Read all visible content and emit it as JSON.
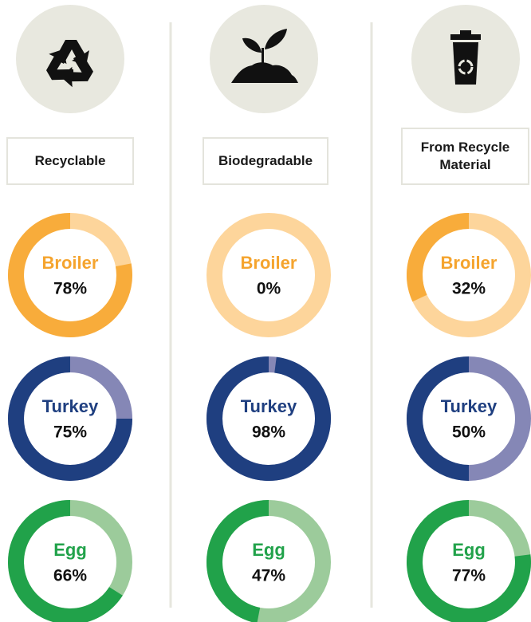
{
  "columns": [
    {
      "label": "Recyclable"
    },
    {
      "label": "Biodegradable"
    },
    {
      "label": "From Recycle Material"
    }
  ],
  "chart_data": [
    {
      "type": "donut",
      "title": "Broiler",
      "values": [
        78
      ],
      "value_labels": [
        "78%"
      ],
      "color": "#f8ac3b",
      "track_color": "#fdd59b",
      "title_color": "#f5a42e"
    },
    {
      "type": "donut",
      "title": "Turkey",
      "values": [
        75
      ],
      "value_labels": [
        "75%"
      ],
      "color": "#1f3f80",
      "track_color": "#8587b6",
      "title_color": "#1f3f80"
    },
    {
      "type": "donut",
      "title": "Egg",
      "values": [
        66
      ],
      "value_labels": [
        "66%"
      ],
      "color": "#21a24a",
      "track_color": "#9ccb9b",
      "title_color": "#21a24a"
    },
    {
      "type": "donut",
      "title": "Broiler",
      "values": [
        0
      ],
      "value_labels": [
        "0%"
      ],
      "color": "#f8ac3b",
      "track_color": "#fdd59b",
      "title_color": "#f5a42e"
    },
    {
      "type": "donut",
      "title": "Turkey",
      "values": [
        98
      ],
      "value_labels": [
        "98%"
      ],
      "color": "#1f3f80",
      "track_color": "#8587b6",
      "title_color": "#1f3f80"
    },
    {
      "type": "donut",
      "title": "Egg",
      "values": [
        47
      ],
      "value_labels": [
        "47%"
      ],
      "color": "#21a24a",
      "track_color": "#9ccb9b",
      "title_color": "#21a24a"
    },
    {
      "type": "donut",
      "title": "Broiler",
      "values": [
        32
      ],
      "value_labels": [
        "32%"
      ],
      "color": "#f8ac3b",
      "track_color": "#fdd59b",
      "title_color": "#f5a42e"
    },
    {
      "type": "donut",
      "title": "Turkey",
      "values": [
        50
      ],
      "value_labels": [
        "50%"
      ],
      "color": "#1f3f80",
      "track_color": "#8587b6",
      "title_color": "#1f3f80"
    },
    {
      "type": "donut",
      "title": "Egg",
      "values": [
        77
      ],
      "value_labels": [
        "77%"
      ],
      "color": "#21a24a",
      "track_color": "#9ccb9b",
      "title_color": "#21a24a"
    }
  ]
}
